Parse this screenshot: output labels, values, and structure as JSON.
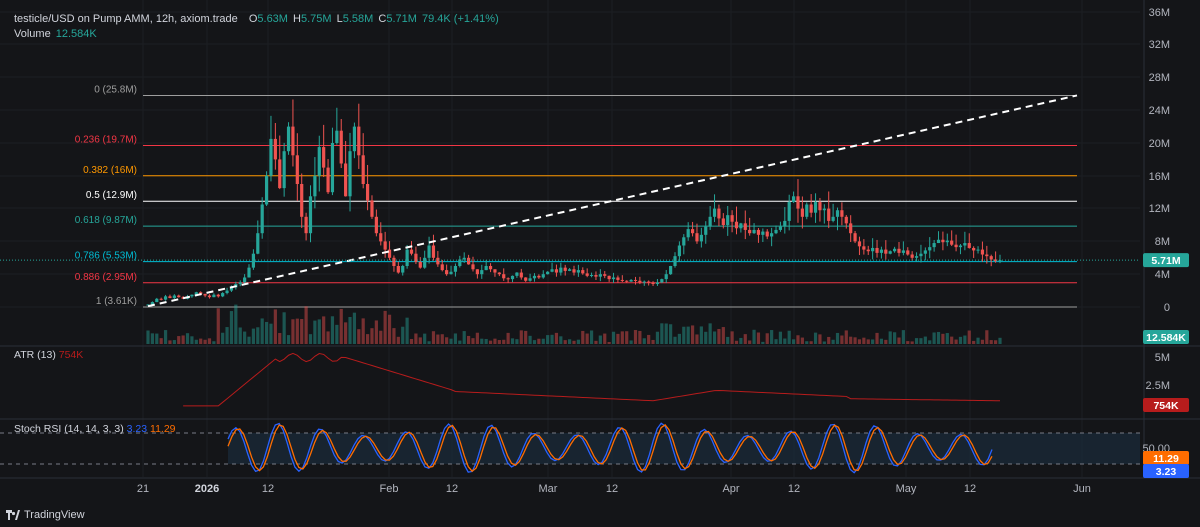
{
  "header": {
    "symbol": "testicle/USD on Pump AMM, 12h, axiom.trade",
    "o_key": "O",
    "o_val": "5.63M",
    "h_key": "H",
    "h_val": "5.75M",
    "l_key": "L",
    "l_val": "5.58M",
    "c_key": "C",
    "c_val": "5.71M",
    "change": "79.4K (+1.41%)",
    "volume_key": "Volume",
    "volume_val": "12.584K"
  },
  "atr": {
    "title": "ATR (13)",
    "value": "754K"
  },
  "stoch": {
    "title": "Stoch RSI (14, 14, 3, 3)",
    "k": "3.23",
    "d": "11.29"
  },
  "footer": {
    "brand": "TradingView"
  },
  "colors": {
    "up": "#26a69a",
    "down": "#ef5350",
    "bg": "#141518",
    "atr": "#b71c1c",
    "stoch_k": "#2962ff",
    "stoch_d": "#ff6d00"
  },
  "chart_data": {
    "type": "candlestick",
    "price_axis": {
      "ticks": [
        "36M",
        "32M",
        "28M",
        "24M",
        "20M",
        "16M",
        "12M",
        "8M",
        "4M",
        "0"
      ],
      "ylim": [
        0,
        36
      ]
    },
    "atr_axis": {
      "ticks": [
        "5M",
        "2.5M"
      ]
    },
    "stoch_axis": {
      "ticks": [
        "50.00"
      ]
    },
    "x_ticks": [
      "21",
      "2026",
      "12",
      "Feb",
      "12",
      "Mar",
      "12",
      "Apr",
      "12",
      "May",
      "12",
      "Jun"
    ],
    "last_price_tag": "5.71M",
    "volume_tag": "12.584K",
    "atr_tag": "754K",
    "stoch_tags": [
      "11.29",
      "3.23"
    ],
    "fib_levels": [
      {
        "label": "0 (25.8M)",
        "value": 25.8,
        "color": "#9e9e9e"
      },
      {
        "label": "0.236 (19.7M)",
        "value": 19.7,
        "color": "#f23645"
      },
      {
        "label": "0.382 (16M)",
        "value": 16.0,
        "color": "#ff9800"
      },
      {
        "label": "0.5 (12.9M)",
        "value": 12.9,
        "color": "#ffffff"
      },
      {
        "label": "0.618 (9.87M)",
        "value": 9.87,
        "color": "#26a69a"
      },
      {
        "label": "0.786 (5.53M)",
        "value": 5.53,
        "color": "#00bcd4"
      },
      {
        "label": "0.886 (2.95M)",
        "value": 2.95,
        "color": "#f23645"
      },
      {
        "label": "1 (3.61K)",
        "value": 0.0036,
        "color": "#9e9e9e"
      }
    ],
    "trendline": {
      "from": [
        0,
        0.1
      ],
      "to": [
        192,
        25.8
      ]
    },
    "close_series": [
      0.3,
      0.6,
      1.0,
      0.9,
      1.3,
      1.1,
      1.4,
      1.2,
      1.0,
      1.3,
      1.5,
      1.8,
      1.6,
      1.4,
      1.2,
      1.5,
      1.3,
      1.7,
      2.0,
      2.4,
      2.8,
      3.0,
      3.6,
      4.8,
      6.5,
      9.0,
      12.5,
      16.0,
      20.5,
      18.0,
      14.5,
      19.0,
      22.0,
      18.5,
      15.0,
      11.0,
      9.0,
      13.5,
      16.0,
      19.5,
      17.0,
      14.0,
      20.0,
      21.5,
      17.5,
      13.5,
      19.0,
      22.0,
      18.5,
      15.0,
      13.0,
      11.0,
      9.0,
      8.0,
      7.0,
      6.0,
      5.0,
      4.2,
      5.0,
      7.0,
      6.5,
      5.5,
      4.8,
      6.0,
      7.5,
      6.0,
      5.2,
      4.5,
      4.0,
      4.3,
      5.0,
      5.8,
      6.0,
      5.2,
      4.6,
      4.0,
      4.5,
      5.0,
      4.6,
      4.2,
      4.0,
      3.5,
      3.4,
      3.8,
      4.2,
      3.6,
      3.2,
      3.5,
      3.8,
      3.6,
      4.0,
      4.3,
      4.6,
      4.2,
      4.8,
      4.4,
      4.6,
      4.2,
      4.5,
      4.1,
      3.8,
      3.9,
      3.7,
      4.0,
      3.8,
      3.4,
      3.6,
      3.3,
      3.2,
      3.1,
      3.3,
      3.2,
      3.0,
      3.1,
      3.0,
      2.8,
      3.0,
      3.4,
      4.0,
      5.0,
      6.2,
      7.5,
      8.5,
      9.5,
      9.0,
      8.0,
      8.8,
      9.8,
      11.0,
      12.0,
      10.8,
      10.0,
      11.2,
      10.4,
      9.6,
      10.2,
      9.4,
      9.0,
      9.4,
      8.8,
      9.2,
      8.6,
      9.0,
      9.4,
      9.8,
      10.5,
      12.8,
      13.5,
      12.0,
      11.0,
      12.5,
      11.5,
      12.8,
      11.8,
      12.0,
      10.5,
      11.0,
      11.8,
      11.0,
      10.2,
      9.0,
      8.0,
      7.4,
      7.0,
      6.8,
      7.2,
      6.6,
      7.0,
      6.5,
      6.8,
      7.1,
      6.6,
      6.9,
      6.4,
      6.0,
      6.2,
      6.5,
      6.9,
      7.3,
      7.8,
      8.2,
      7.9,
      8.1,
      7.6,
      7.3,
      7.5,
      7.8,
      7.2,
      6.9,
      7.0,
      6.4,
      6.2,
      5.8,
      5.6,
      5.71
    ]
  }
}
